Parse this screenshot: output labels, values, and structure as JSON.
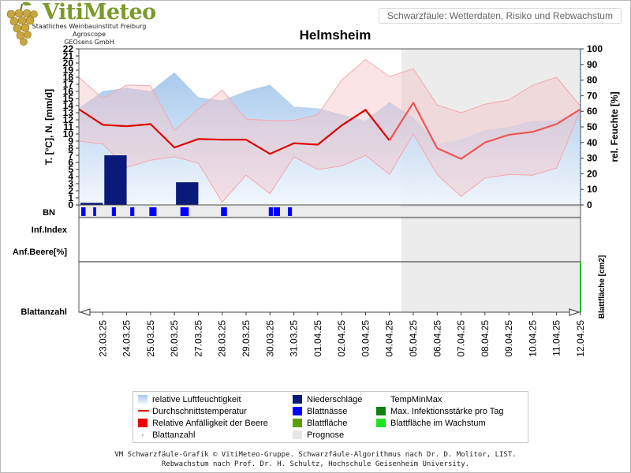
{
  "brand": {
    "name": "VitiMeteo",
    "line1": "Staatliches Weinbauinstitut Freiburg",
    "line2": "Agroscope",
    "line3": "GEOsens GmbH"
  },
  "header": {
    "subtitle": "Schwarzfäule: Wetterdaten, Risiko und Rebwachstum"
  },
  "footer": {
    "line1": "VM Schwarzfäule-Grafik © VitiMeteo-Gruppe. Schwarzfäule-Algorithmus nach Dr. D. Molitor, LIST.",
    "line2": "Rebwachstum nach Prof. Dr. H. Schultz, Hochschule Geisenheim University."
  },
  "legend": {
    "humidity": "relative Luftfeuchtigkeit",
    "avg_temp": "Durchschnittstemperatur",
    "berry_susceptibility": "Relative Anfälligkeit der Beere",
    "leaf_count": "Blattanzahl",
    "precip": "Niederschläge",
    "leaf_wetness": "Blattnässe",
    "leaf_area": "Blattfläche",
    "forecast": "Prognose",
    "temp_minmax": "TempMinMax",
    "max_infection": "Max. Infektionsstärke pro Tag",
    "leaf_area_growth": "Blattfläche im Wachstum"
  },
  "chart_data": {
    "type": "line",
    "title": "Helmsheim",
    "ylabel_left": "T. [°C], N. [mm/d]",
    "ylabel_right": "rel. Feuchte [%]",
    "ylabel_leafarea": "Blattfläche [cm2]",
    "ylim_left": [
      0,
      22
    ],
    "ylim_right": [
      0,
      100
    ],
    "yticks_left": [
      "0",
      "1",
      "2",
      "3",
      "4",
      "5",
      "6",
      "7",
      "8",
      "9",
      "10",
      "11",
      "12",
      "13",
      "14",
      "15",
      "16",
      "17",
      "18",
      "19",
      "20",
      "21",
      "22"
    ],
    "yticks_right": [
      "0",
      "10",
      "20",
      "30",
      "40",
      "50",
      "60",
      "70",
      "80",
      "90",
      "100"
    ],
    "row_labels": [
      "BN",
      "Inf.Index",
      "Anf.Beere[%]",
      "Blattanzahl"
    ],
    "dates": [
      "23.03.25",
      "24.03.25",
      "25.03.25",
      "26.03.25",
      "27.03.25",
      "28.03.25",
      "29.03.25",
      "30.03.25",
      "31.03.25",
      "01.04.25",
      "02.04.25",
      "03.04.25",
      "04.04.25",
      "05.04.25",
      "06.04.25",
      "07.04.25",
      "08.04.25",
      "09.04.25",
      "10.04.25",
      "11.04.25",
      "12.04.25"
    ],
    "x_start": "22.03.25",
    "forecast_start": "04.04.25 12:00",
    "avg_temp": [
      13.5,
      11.3,
      11.1,
      11.4,
      8.1,
      9.3,
      9.2,
      9.2,
      7.2,
      8.7,
      8.5,
      11.2,
      13.4,
      9.1,
      14.4,
      8.0,
      6.5,
      8.8,
      9.9,
      10.3,
      11.4,
      13.5
    ],
    "temp_max": [
      18.0,
      15.0,
      16.9,
      16.8,
      10.5,
      13.5,
      16.2,
      12.1,
      11.9,
      11.9,
      12.7,
      17.6,
      20.5,
      18.1,
      19.2,
      14.1,
      13.0,
      14.2,
      14.8,
      16.9,
      18.0,
      13.9
    ],
    "temp_min": [
      9.0,
      8.6,
      5.3,
      6.3,
      6.8,
      5.9,
      0.4,
      4.2,
      1.6,
      6.8,
      5.0,
      5.5,
      7.0,
      4.3,
      10.0,
      4.3,
      1.2,
      3.8,
      4.3,
      4.2,
      5.2,
      13.5
    ],
    "humidity": [
      62,
      73,
      75,
      73,
      85,
      69,
      67,
      73,
      77,
      63,
      62,
      58,
      54,
      66,
      56,
      39,
      42,
      48,
      50,
      54,
      54,
      61
    ],
    "precip": [
      0.3,
      7.0,
      0,
      0,
      3.2,
      0,
      0,
      0,
      0,
      0,
      0,
      0,
      0,
      0,
      0,
      0,
      0,
      0,
      0,
      0,
      0
    ],
    "leaf_wetness_hours": [
      [
        0.1,
        0.28
      ],
      [
        0.6,
        0.72
      ],
      [
        1.38,
        1.55
      ],
      [
        2.15,
        2.32
      ],
      [
        2.95,
        3.25
      ],
      [
        4.25,
        4.6
      ],
      [
        5.95,
        6.2
      ],
      [
        7.95,
        8.12
      ],
      [
        8.15,
        8.42
      ],
      [
        8.75,
        8.92
      ]
    ]
  }
}
